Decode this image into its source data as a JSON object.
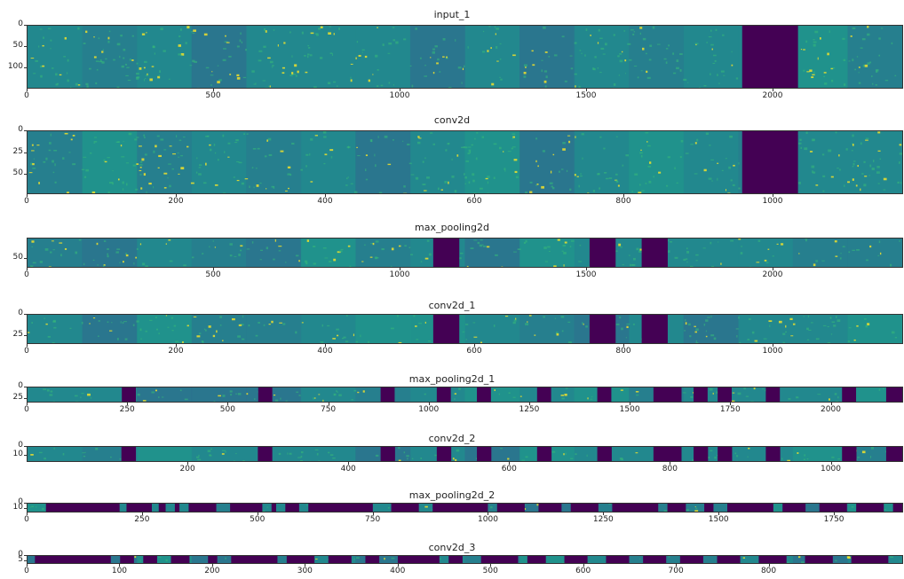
{
  "colors": {
    "base": "#23888e",
    "dark": "#440154",
    "mid": "#2a788e",
    "light": "#35b779",
    "bright": "#fde725",
    "teal2": "#1f9a8a",
    "blue": "#31688e"
  },
  "panels": [
    {
      "title": "input_1",
      "xmax": 2350,
      "xticks": [
        "0",
        "500",
        "1000",
        "1500",
        "2000"
      ],
      "xtick_values": [
        0,
        500,
        1000,
        1500,
        2000
      ],
      "yticks": [
        "0",
        "50",
        "100"
      ],
      "ytick_values": [
        0,
        50,
        100
      ],
      "ymax": 150,
      "dark_blocks": [
        [
          1920,
          2070
        ]
      ]
    },
    {
      "title": "conv2d",
      "xmax": 1175,
      "xticks": [
        "0",
        "200",
        "400",
        "600",
        "800",
        "1000"
      ],
      "xtick_values": [
        0,
        200,
        400,
        600,
        800,
        1000
      ],
      "yticks": [
        "0",
        "25",
        "50"
      ],
      "ytick_values": [
        0,
        25,
        50
      ],
      "ymax": 73,
      "dark_blocks": [
        [
          960,
          1035
        ]
      ]
    },
    {
      "title": "max_pooling2d",
      "xmax": 2350,
      "xticks": [
        "0",
        "500",
        "1000",
        "1500",
        "2000"
      ],
      "xtick_values": [
        0,
        500,
        1000,
        1500,
        2000
      ],
      "yticks": [
        "50"
      ],
      "ytick_values": [
        50
      ],
      "ymax": 73,
      "dark_blocks": [
        [
          1090,
          1160
        ],
        [
          1510,
          1580
        ],
        [
          1650,
          1720
        ]
      ]
    },
    {
      "title": "conv2d_1",
      "xmax": 1175,
      "xticks": [
        "0",
        "200",
        "400",
        "600",
        "800",
        "1000"
      ],
      "xtick_values": [
        0,
        200,
        400,
        600,
        800,
        1000
      ],
      "yticks": [
        "0",
        "25"
      ],
      "ytick_values": [
        0,
        25
      ],
      "ymax": 36,
      "dark_blocks": [
        [
          545,
          580
        ],
        [
          755,
          790
        ],
        [
          825,
          860
        ]
      ]
    },
    {
      "title": "max_pooling2d_1",
      "xmax": 2180,
      "xticks": [
        "0",
        "250",
        "500",
        "750",
        "1000",
        "1250",
        "1500",
        "1750",
        "2000"
      ],
      "xtick_values": [
        0,
        250,
        500,
        750,
        1000,
        1250,
        1500,
        1750,
        2000
      ],
      "yticks": [
        "0",
        "25"
      ],
      "ytick_values": [
        0,
        25
      ],
      "ymax": 36,
      "dark_blocks": [
        [
          235,
          270
        ],
        [
          575,
          610
        ],
        [
          880,
          915
        ],
        [
          1020,
          1055
        ],
        [
          1120,
          1155
        ],
        [
          1270,
          1305
        ],
        [
          1420,
          1455
        ],
        [
          1560,
          1630
        ],
        [
          1660,
          1695
        ],
        [
          1720,
          1755
        ],
        [
          1840,
          1875
        ],
        [
          2030,
          2065
        ],
        [
          2140,
          2180
        ]
      ]
    },
    {
      "title": "conv2d_2",
      "xmax": 1090,
      "xticks": [
        "200",
        "400",
        "600",
        "800",
        "1000"
      ],
      "xtick_values": [
        200,
        400,
        600,
        800,
        1000
      ],
      "yticks": [
        "0",
        "10"
      ],
      "ytick_values": [
        0,
        10
      ],
      "ymax": 18,
      "dark_blocks": [
        [
          117,
          135
        ],
        [
          287,
          305
        ],
        [
          440,
          458
        ],
        [
          510,
          528
        ],
        [
          560,
          578
        ],
        [
          635,
          653
        ],
        [
          710,
          728
        ],
        [
          780,
          815
        ],
        [
          830,
          848
        ],
        [
          860,
          878
        ],
        [
          920,
          938
        ],
        [
          1015,
          1033
        ],
        [
          1070,
          1090
        ]
      ]
    },
    {
      "title": "max_pooling2d_2",
      "xmax": 1900,
      "xticks": [
        "0",
        "250",
        "500",
        "750",
        "1000",
        "1250",
        "1500",
        "1750"
      ],
      "xtick_values": [
        0,
        250,
        500,
        750,
        1000,
        1250,
        1500,
        1750
      ],
      "yticks": [
        "0",
        "10"
      ],
      "ytick_values": [
        0,
        10
      ],
      "ymax": 18,
      "dark_blocks": [
        [
          40,
          200
        ],
        [
          215,
          270
        ],
        [
          285,
          300
        ],
        [
          320,
          330
        ],
        [
          350,
          410
        ],
        [
          440,
          510
        ],
        [
          530,
          540
        ],
        [
          560,
          590
        ],
        [
          610,
          750
        ],
        [
          790,
          850
        ],
        [
          880,
          1000
        ],
        [
          1020,
          1080
        ],
        [
          1110,
          1160
        ],
        [
          1180,
          1240
        ],
        [
          1270,
          1370
        ],
        [
          1390,
          1430
        ],
        [
          1470,
          1490
        ],
        [
          1520,
          1620
        ],
        [
          1640,
          1690
        ],
        [
          1720,
          1780
        ],
        [
          1800,
          1860
        ],
        [
          1880,
          1900
        ]
      ]
    },
    {
      "title": "conv2d_3",
      "xmax": 945,
      "xticks": [
        "0",
        "100",
        "200",
        "300",
        "400",
        "500",
        "600",
        "700",
        "800"
      ],
      "xtick_values": [
        0,
        100,
        200,
        300,
        400,
        500,
        600,
        700,
        800
      ],
      "yticks": [
        "0",
        "5"
      ],
      "ytick_values": [
        0,
        5
      ],
      "ymax": 9,
      "dark_blocks": [
        [
          8,
          90
        ],
        [
          100,
          115
        ],
        [
          125,
          140
        ],
        [
          155,
          175
        ],
        [
          195,
          205
        ],
        [
          220,
          270
        ],
        [
          280,
          310
        ],
        [
          325,
          350
        ],
        [
          365,
          380
        ],
        [
          400,
          445
        ],
        [
          455,
          470
        ],
        [
          490,
          530
        ],
        [
          540,
          560
        ],
        [
          580,
          605
        ],
        [
          625,
          650
        ],
        [
          665,
          690
        ],
        [
          705,
          730
        ],
        [
          745,
          770
        ],
        [
          790,
          820
        ],
        [
          840,
          870
        ],
        [
          890,
          930
        ]
      ]
    }
  ]
}
